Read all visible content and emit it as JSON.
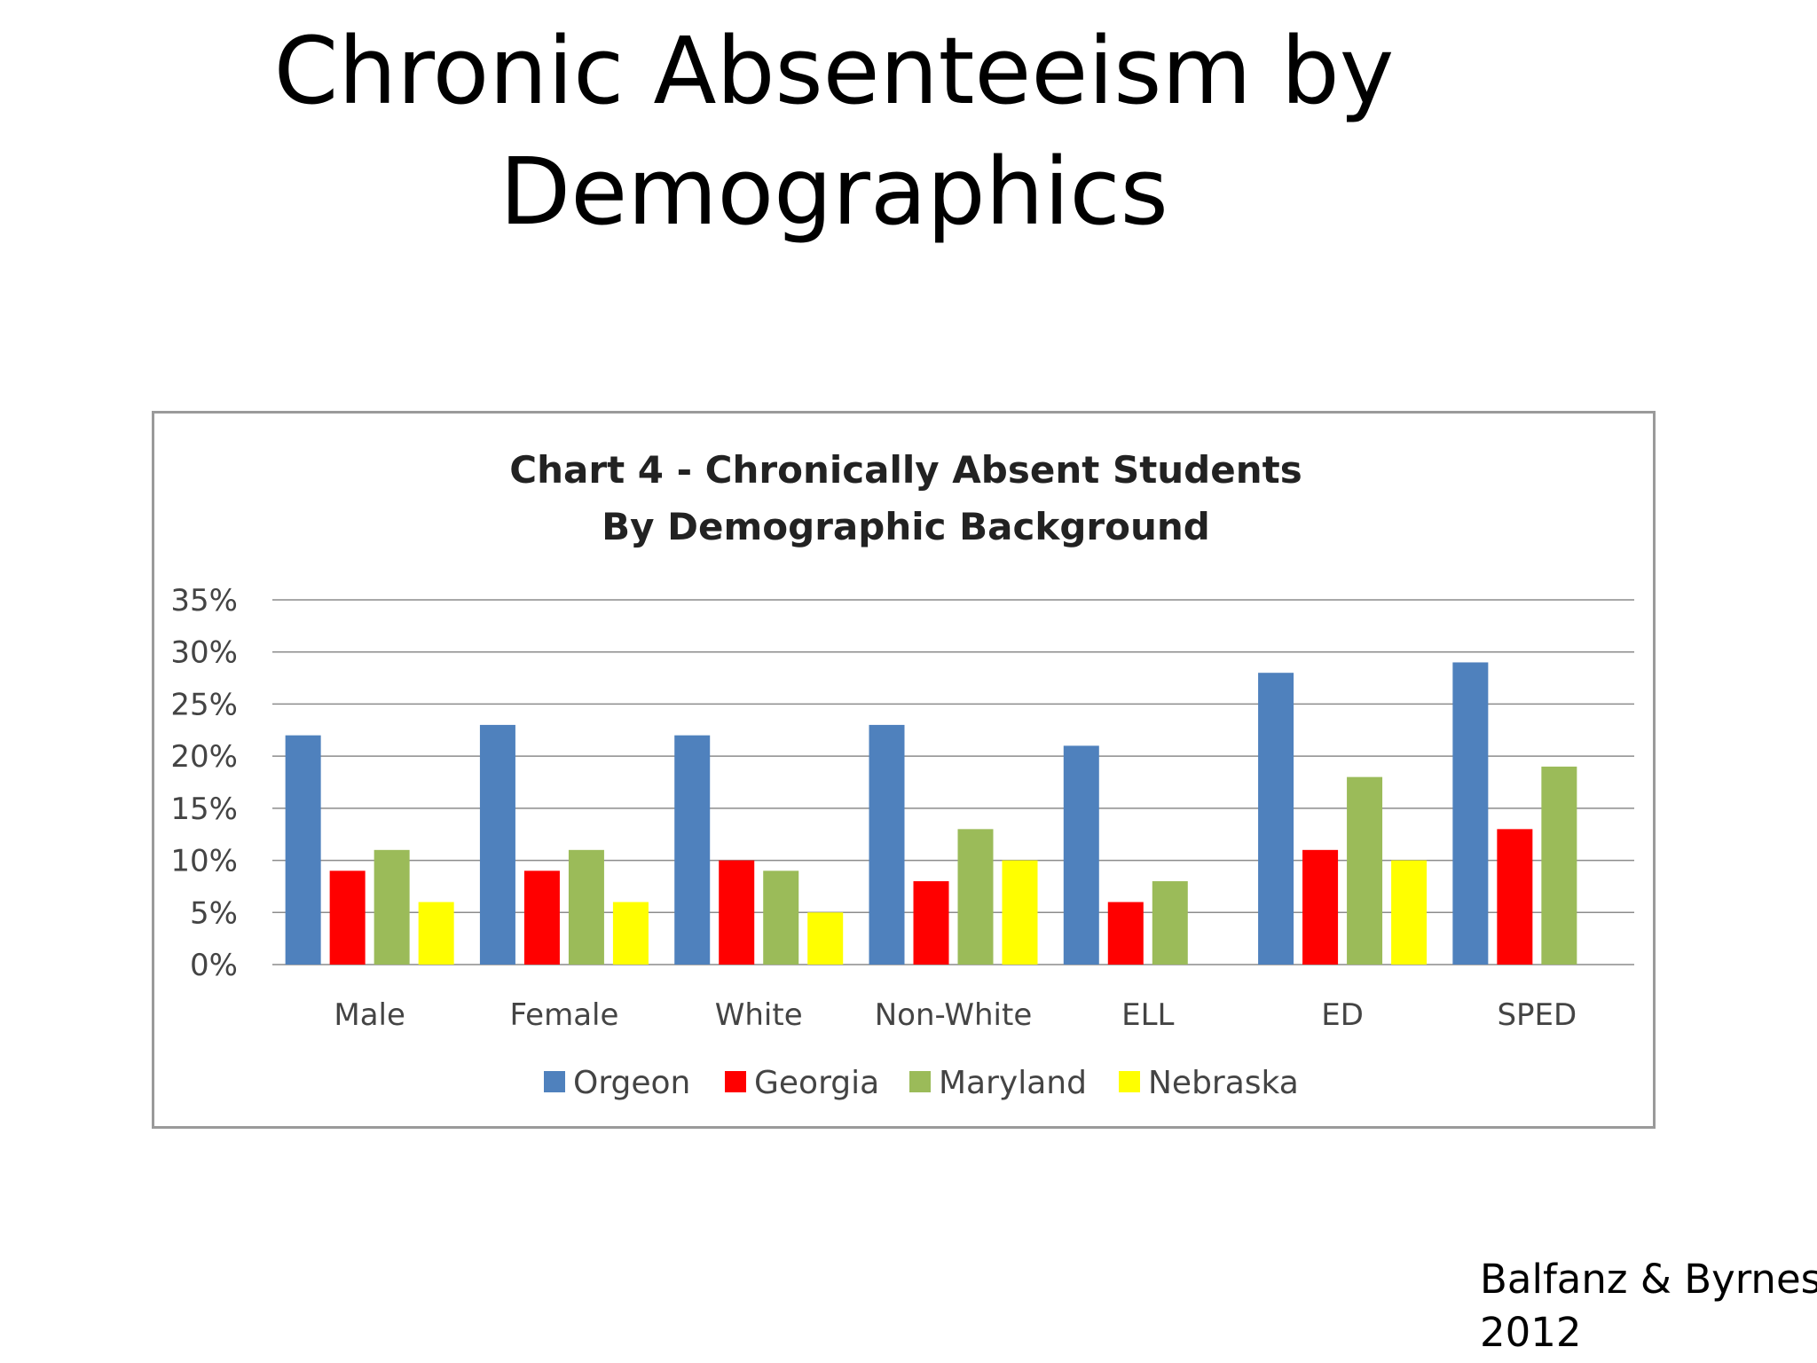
{
  "slide": {
    "title_line1": "Chronic Absenteeism by",
    "title_line2": "Demographics",
    "citation_line1": "Balfanz & Byrnes,",
    "citation_line2": "2012"
  },
  "chart_data": {
    "type": "bar",
    "title": "Chart 4 - Chronically Absent Students",
    "subtitle": "By Demographic Background",
    "xlabel": "",
    "ylabel": "",
    "ylim": [
      0,
      35
    ],
    "yticks": [
      0,
      5,
      10,
      15,
      20,
      25,
      30,
      35
    ],
    "ytick_labels": [
      "0%",
      "5%",
      "10%",
      "15%",
      "20%",
      "25%",
      "30%",
      "35%"
    ],
    "grid": true,
    "legend_position": "bottom",
    "categories": [
      "Male",
      "Female",
      "White",
      "Non-White",
      "ELL",
      "ED",
      "SPED"
    ],
    "series": [
      {
        "name": "Orgeon",
        "color": "#4f81bd",
        "values": [
          22,
          23,
          22,
          23,
          21,
          28,
          29
        ]
      },
      {
        "name": "Georgia",
        "color": "#ff0000",
        "values": [
          9,
          9,
          10,
          8,
          6,
          11,
          13
        ]
      },
      {
        "name": "Maryland",
        "color": "#9bbb59",
        "values": [
          11,
          11,
          9,
          13,
          8,
          18,
          19
        ]
      },
      {
        "name": "Nebraska",
        "color": "#ffff00",
        "values": [
          6,
          6,
          5,
          10,
          null,
          10,
          null
        ]
      }
    ]
  }
}
